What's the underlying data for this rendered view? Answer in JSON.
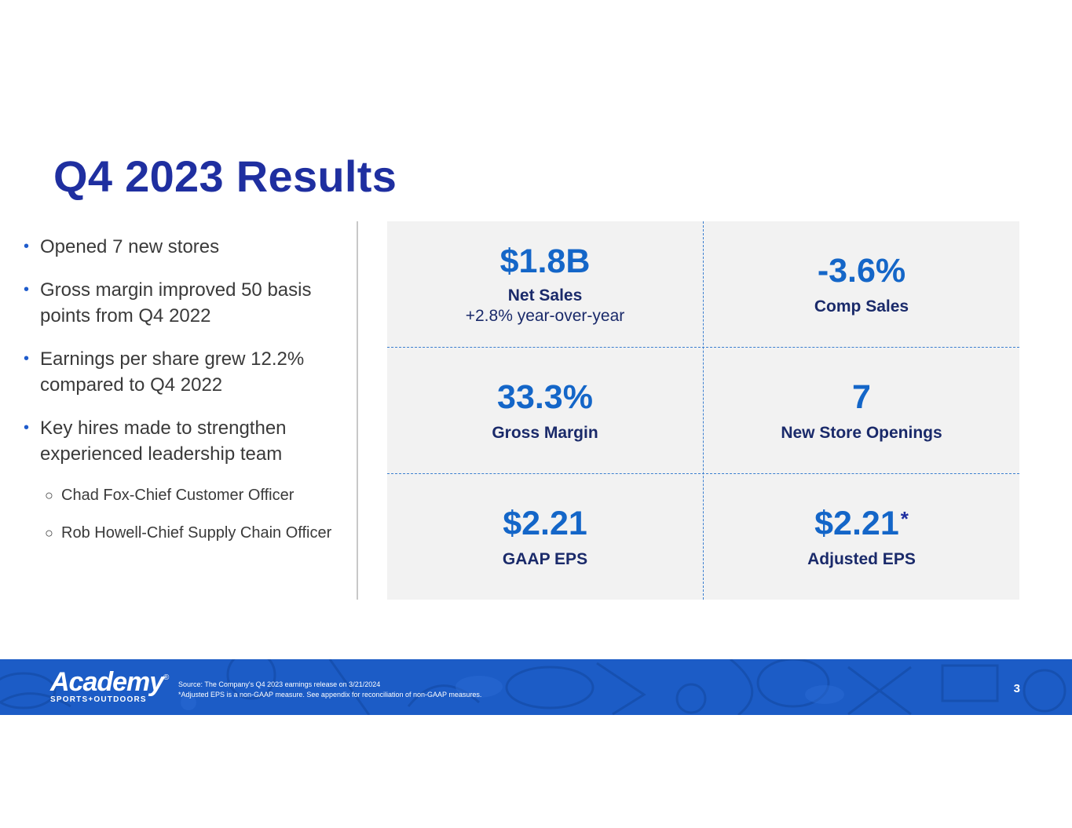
{
  "slide": {
    "title": "Q4 2023 Results"
  },
  "bullets": [
    "Opened 7 new stores",
    "Gross margin improved 50 basis points from Q4 2022",
    "Earnings per share grew 12.2% compared to Q4 2022",
    "Key hires made to strengthen experienced leadership team"
  ],
  "sub_bullets": [
    "Chad Fox-Chief Customer Officer",
    "Rob Howell-Chief Supply Chain Officer"
  ],
  "metrics": [
    {
      "value": "$1.8B",
      "label": "Net Sales",
      "sublabel": "+2.8% year-over-year"
    },
    {
      "value": "-3.6%",
      "label": "Comp Sales"
    },
    {
      "value": "33.3%",
      "label": "Gross Margin"
    },
    {
      "value": "7",
      "label": "New Store Openings"
    },
    {
      "value": "$2.21",
      "label": "GAAP EPS"
    },
    {
      "value": "$2.21",
      "footnote_mark": "*",
      "label": "Adjusted EPS"
    }
  ],
  "footer": {
    "logo_word": "Academy",
    "logo_reg": "®",
    "logo_sub": "SPORTS+OUTDOORS",
    "source": "Source: The Company's Q4 2023 earnings release on 3/21/2024",
    "note": "*Adjusted EPS is a non-GAAP measure. See appendix for reconciliation of non-GAAP measures.",
    "page_number": "3"
  },
  "colors": {
    "title": "#1f2fa0",
    "metric_value": "#1466c8",
    "metric_label": "#1a2a6a",
    "panel_bg": "#f2f2f2",
    "divider": "#3b7fd0",
    "footer_bg": "#1c5cc6"
  }
}
